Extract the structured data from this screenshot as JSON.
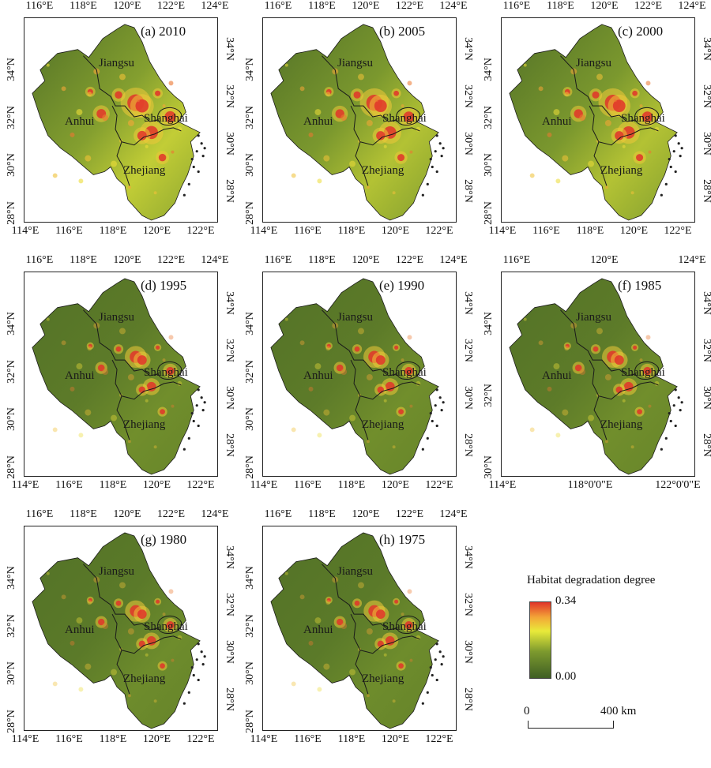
{
  "panels": [
    {
      "id": "a",
      "title": "(a) 2010",
      "level": 0.62,
      "top_ticks": [
        "116°E",
        "118°E",
        "120°E",
        "122°E",
        "124°E"
      ],
      "bottom_ticks": [
        "114°E",
        "116°E",
        "118°E",
        "120°E",
        "122°E"
      ],
      "left_ticks": [
        "28°N",
        "30°N",
        "32°N",
        "34°N"
      ],
      "right_ticks": [
        "28°N",
        "30°N",
        "32°N",
        "34°N"
      ]
    },
    {
      "id": "b",
      "title": "(b) 2005",
      "level": 0.55,
      "top_ticks": [
        "116°E",
        "118°E",
        "120°E",
        "122°E",
        "124°E"
      ],
      "bottom_ticks": [
        "114°E",
        "116°E",
        "118°E",
        "120°E",
        "122°E"
      ],
      "left_ticks": [
        "28°N",
        "30°N",
        "32°N",
        "34°N"
      ],
      "right_ticks": [
        "28°N",
        "30°N",
        "32°N",
        "34°N"
      ]
    },
    {
      "id": "c",
      "title": "(c) 2000",
      "level": 0.55,
      "top_ticks": [
        "116°E",
        "118°E",
        "120°E",
        "122°E",
        "124°E"
      ],
      "bottom_ticks": [
        "114°E",
        "116°E",
        "118°E",
        "120°E",
        "122°E"
      ],
      "left_ticks": [
        "28°N",
        "30°N",
        "32°N",
        "34°N"
      ],
      "right_ticks": [
        "28°N",
        "30°N",
        "32°N",
        "34°N"
      ]
    },
    {
      "id": "d",
      "title": "(d) 1995",
      "level": 0.2,
      "top_ticks": [
        "116°E",
        "118°E",
        "120°E",
        "122°E",
        "124°E"
      ],
      "bottom_ticks": [
        "114°E",
        "116°E",
        "118°E",
        "120°E",
        "122°E"
      ],
      "left_ticks": [
        "28°N",
        "30°N",
        "32°N",
        "34°N"
      ],
      "right_ticks": [
        "28°N",
        "30°N",
        "32°N",
        "34°N"
      ]
    },
    {
      "id": "e",
      "title": "(e) 1990",
      "level": 0.2,
      "top_ticks": [
        "116°E",
        "118°E",
        "120°E",
        "122°E",
        "124°E"
      ],
      "bottom_ticks": [
        "114°E",
        "116°E",
        "118°E",
        "120°E",
        "122°E"
      ],
      "left_ticks": [
        "28°N",
        "30°N",
        "32°N",
        "34°N"
      ],
      "right_ticks": [
        "28°N",
        "30°N",
        "32°N",
        "34°N"
      ]
    },
    {
      "id": "f",
      "title": "(f) 1985",
      "level": 0.2,
      "top_ticks": [
        "116°E",
        "120°E",
        "124°E"
      ],
      "bottom_ticks": [
        "114°E",
        "118°0'0\"E",
        "122°0'0\"E"
      ],
      "left_ticks": [
        "30°N",
        "32°N",
        "34°N"
      ],
      "right_ticks": [
        "28°N",
        "30°N",
        "32°N",
        "34°N"
      ]
    },
    {
      "id": "g",
      "title": "(g) 1980",
      "level": 0.18,
      "top_ticks": [
        "116°E",
        "118°E",
        "120°E",
        "122°E",
        "124°E"
      ],
      "bottom_ticks": [
        "114°E",
        "116°E",
        "118°E",
        "120°E",
        "122°E"
      ],
      "left_ticks": [
        "28°N",
        "30°N",
        "32°N",
        "34°N"
      ],
      "right_ticks": [
        "28°N",
        "30°N",
        "32°N",
        "34°N"
      ]
    },
    {
      "id": "h",
      "title": "(h) 1975",
      "level": 0.18,
      "top_ticks": [
        "116°E",
        "118°E",
        "120°E",
        "122°E",
        "124°E"
      ],
      "bottom_ticks": [
        "114°E",
        "116°E",
        "118°E",
        "120°E",
        "122°E"
      ],
      "left_ticks": [
        "28°N",
        "30°N",
        "32°N",
        "34°N"
      ],
      "right_ticks": [
        "28°N",
        "30°N",
        "32°N",
        "34°N"
      ]
    }
  ],
  "provinces": [
    "Jiangsu",
    "Shanghai",
    "Anhui",
    "Zhejiang"
  ],
  "legend": {
    "title": "Habitat degradation degree",
    "max": "0.34",
    "min": "0.00",
    "colors": [
      "#3f5f24",
      "#7d9a2e",
      "#e9ea3a",
      "#f3a637",
      "#e0342a"
    ]
  },
  "scale_bar": {
    "start": "0",
    "end": "400 km"
  },
  "colors": {
    "boundary": "#1a1a1a",
    "hotspot": "#e0342a",
    "land_dark": "#4a6a2a",
    "land_light": "#7e9b35"
  }
}
